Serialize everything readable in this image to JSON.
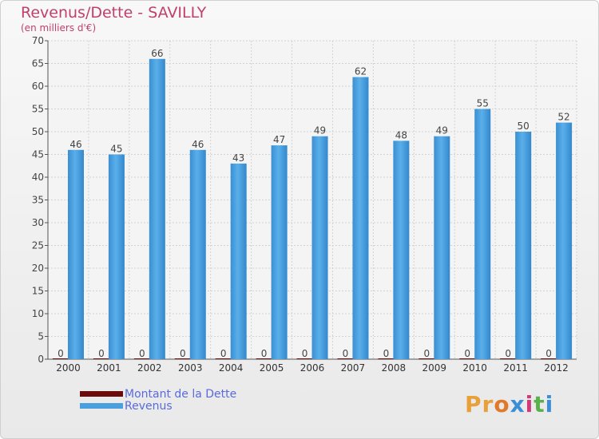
{
  "title": "Revenus/Dette - SAVILLY",
  "subtitle": "(en milliers d'€)",
  "colors": {
    "revenus": "#4a9fdf",
    "dette": "#6b0b0b",
    "title": "#c0406a",
    "legend_text": "#5a6adb"
  },
  "legend": {
    "items": [
      "Montant de la Dette",
      "Revenus"
    ]
  },
  "logo": {
    "text": "Proxiti"
  },
  "chart_data": {
    "type": "bar",
    "categories": [
      "2000",
      "2001",
      "2002",
      "2003",
      "2004",
      "2005",
      "2006",
      "2007",
      "2008",
      "2009",
      "2010",
      "2011",
      "2012"
    ],
    "series": [
      {
        "name": "Montant de la Dette",
        "values": [
          0,
          0,
          0,
          0,
          0,
          0,
          0,
          0,
          0,
          0,
          0,
          0,
          0
        ]
      },
      {
        "name": "Revenus",
        "values": [
          46,
          45,
          66,
          46,
          43,
          47,
          49,
          62,
          48,
          49,
          55,
          50,
          52
        ]
      }
    ],
    "ylim": [
      0,
      70
    ],
    "yticks": [
      0,
      5,
      10,
      15,
      20,
      25,
      30,
      35,
      40,
      45,
      50,
      55,
      60,
      65,
      70
    ],
    "grid": true,
    "legend_position": "bottom-left"
  }
}
